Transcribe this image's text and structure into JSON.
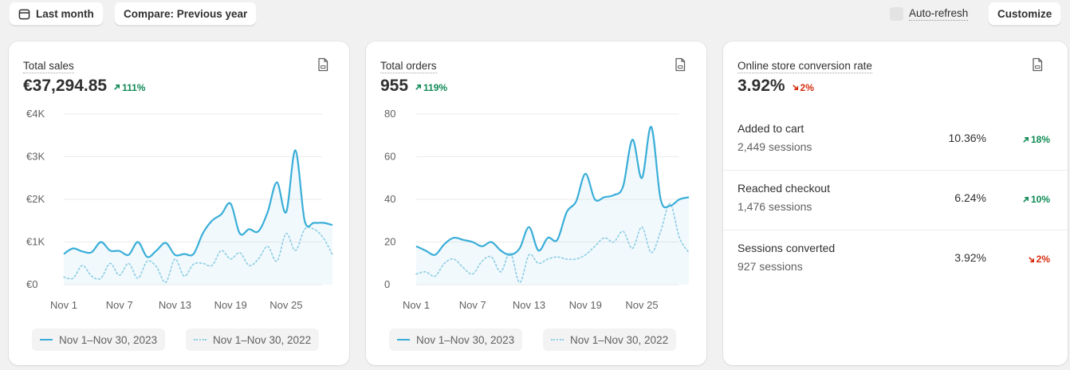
{
  "toolbar": {
    "date_range_label": "Last month",
    "compare_label": "Compare: Previous year",
    "auto_refresh_label": "Auto-refresh",
    "customize_label": "Customize"
  },
  "colors": {
    "current_series": "#3aaed8",
    "previous_series": "#8dcde4",
    "positive": "#0f8a54",
    "negative": "#d72c0d"
  },
  "cards": {
    "total_sales": {
      "title": "Total sales",
      "value": "€37,294.85",
      "delta": "111%",
      "delta_direction": "up",
      "legend_current": "Nov 1–Nov 30, 2023",
      "legend_previous": "Nov 1–Nov 30, 2022"
    },
    "total_orders": {
      "title": "Total orders",
      "value": "955",
      "delta": "119%",
      "delta_direction": "up",
      "legend_current": "Nov 1–Nov 30, 2023",
      "legend_previous": "Nov 1–Nov 30, 2022"
    },
    "conversion": {
      "title": "Online store conversion rate",
      "value": "3.92%",
      "delta": "2%",
      "delta_direction": "down",
      "rows": [
        {
          "name": "Added to cart",
          "sessions": "2,449 sessions",
          "rate": "10.36%",
          "delta": "18%",
          "direction": "up"
        },
        {
          "name": "Reached checkout",
          "sessions": "1,476 sessions",
          "rate": "6.24%",
          "delta": "10%",
          "direction": "up"
        },
        {
          "name": "Sessions converted",
          "sessions": "927 sessions",
          "rate": "3.92%",
          "delta": "2%",
          "direction": "down"
        }
      ]
    }
  },
  "chart_data": [
    {
      "type": "area",
      "title": "Total sales",
      "x": [
        "Nov 1",
        "Nov 2",
        "Nov 3",
        "Nov 4",
        "Nov 5",
        "Nov 6",
        "Nov 7",
        "Nov 8",
        "Nov 9",
        "Nov 10",
        "Nov 11",
        "Nov 12",
        "Nov 13",
        "Nov 14",
        "Nov 15",
        "Nov 16",
        "Nov 17",
        "Nov 18",
        "Nov 19",
        "Nov 20",
        "Nov 21",
        "Nov 22",
        "Nov 23",
        "Nov 24",
        "Nov 25",
        "Nov 26",
        "Nov 27",
        "Nov 28",
        "Nov 29",
        "Nov 30"
      ],
      "x_tick_labels": [
        "Nov 1",
        "Nov 7",
        "Nov 13",
        "Nov 19",
        "Nov 25"
      ],
      "y_tick_labels": [
        "€0",
        "€1K",
        "€2K",
        "€3K",
        "€4K"
      ],
      "ylim": [
        0,
        4000
      ],
      "grid": true,
      "series": [
        {
          "name": "Nov 1–Nov 30, 2023",
          "style": "solid",
          "values": [
            720,
            850,
            780,
            760,
            1000,
            800,
            790,
            700,
            1000,
            650,
            800,
            980,
            700,
            720,
            720,
            1200,
            1500,
            1650,
            1900,
            1200,
            1300,
            1250,
            1700,
            2400,
            1700,
            3150,
            1500,
            1450,
            1450,
            1400
          ]
        },
        {
          "name": "Nov 1–Nov 30, 2022",
          "style": "dotted",
          "values": [
            180,
            150,
            450,
            200,
            150,
            500,
            220,
            500,
            150,
            550,
            420,
            50,
            600,
            200,
            480,
            500,
            450,
            800,
            600,
            750,
            450,
            600,
            900,
            550,
            1200,
            800,
            1300,
            1300,
            1100,
            700
          ]
        }
      ]
    },
    {
      "type": "area",
      "title": "Total orders",
      "x": [
        "Nov 1",
        "Nov 2",
        "Nov 3",
        "Nov 4",
        "Nov 5",
        "Nov 6",
        "Nov 7",
        "Nov 8",
        "Nov 9",
        "Nov 10",
        "Nov 11",
        "Nov 12",
        "Nov 13",
        "Nov 14",
        "Nov 15",
        "Nov 16",
        "Nov 17",
        "Nov 18",
        "Nov 19",
        "Nov 20",
        "Nov 21",
        "Nov 22",
        "Nov 23",
        "Nov 24",
        "Nov 25",
        "Nov 26",
        "Nov 27",
        "Nov 28",
        "Nov 29",
        "Nov 30"
      ],
      "x_tick_labels": [
        "Nov 1",
        "Nov 7",
        "Nov 13",
        "Nov 19",
        "Nov 25"
      ],
      "y_tick_labels": [
        "0",
        "20",
        "40",
        "60",
        "80"
      ],
      "ylim": [
        0,
        80
      ],
      "grid": true,
      "series": [
        {
          "name": "Nov 1–Nov 30, 2023",
          "style": "solid",
          "values": [
            18,
            16,
            14,
            19,
            22,
            21,
            20,
            18,
            20,
            16,
            14,
            17,
            27,
            16,
            22,
            21,
            34,
            39,
            52,
            40,
            41,
            42,
            46,
            68,
            50,
            74,
            40,
            37,
            40,
            41
          ]
        },
        {
          "name": "Nov 1–Nov 30, 2022",
          "style": "dotted",
          "values": [
            5,
            6,
            4,
            10,
            12,
            8,
            5,
            11,
            13,
            6,
            15,
            1,
            14,
            10,
            12,
            13,
            12,
            12,
            14,
            18,
            22,
            20,
            25,
            17,
            27,
            15,
            25,
            38,
            22,
            15
          ]
        }
      ]
    }
  ]
}
